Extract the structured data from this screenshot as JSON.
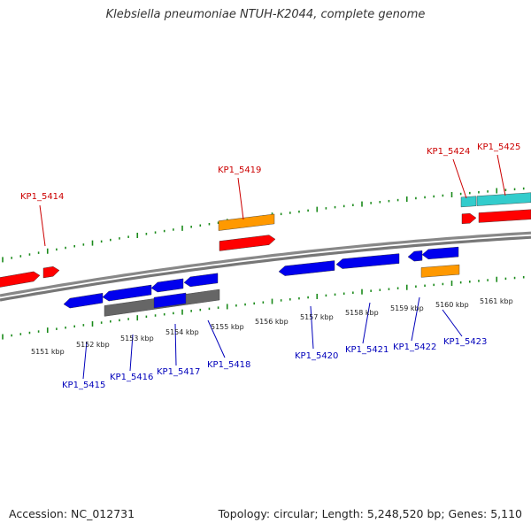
{
  "title": "Klebsiella pneumoniae NTUH-K2044, complete genome",
  "footer": {
    "accession": "Accession: NC_012731",
    "summary": "Topology: circular; Length: 5,248,520 bp; Genes: 5,110"
  },
  "colors": {
    "plus_gene": "#ff0000",
    "minus_gene": "#0000ee",
    "orange_feature": "#ff9900",
    "cyan_feature": "#33cccc",
    "gray_feature": "#666666",
    "backbone": "#888888",
    "ticks": "#1a8a1a",
    "plus_label": "#cc0000",
    "minus_label": "#0000bb"
  },
  "kbp_labels": [
    "5151 kbp",
    "5152 kbp",
    "5153 kbp",
    "5154 kbp",
    "5155 kbp",
    "5156 kbp",
    "5157 kbp",
    "5158 kbp",
    "5159 kbp",
    "5160 kbp",
    "5161 kbp"
  ],
  "plus_gene_labels": [
    "KP1_5414",
    "KP1_5419",
    "KP1_5424",
    "KP1_5425"
  ],
  "minus_gene_labels": [
    "KP1_5415",
    "KP1_5416",
    "KP1_5417",
    "KP1_5418",
    "KP1_5420",
    "KP1_5421",
    "KP1_5422",
    "KP1_5423"
  ]
}
